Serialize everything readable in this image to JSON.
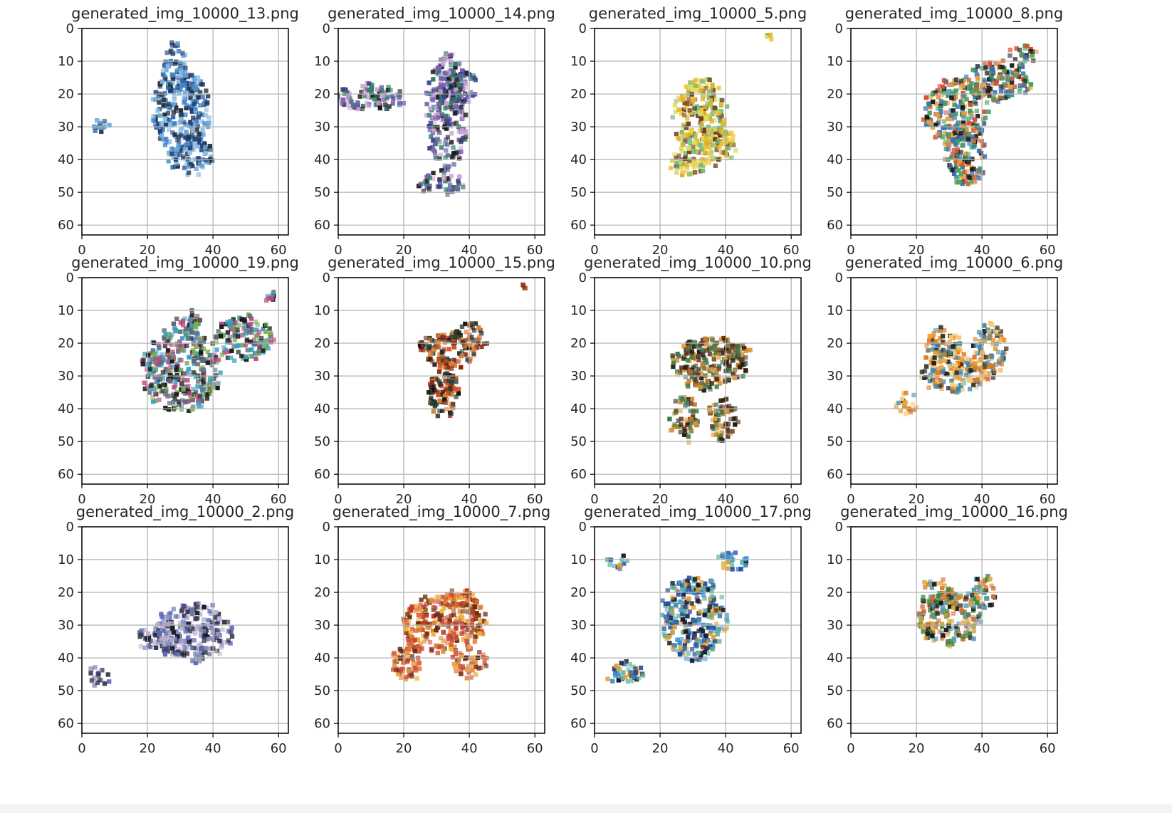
{
  "figure": {
    "background": "#ffffff",
    "grid_color": "#b0b0b0",
    "axis_color": "#000000",
    "text_color": "#262626"
  },
  "chart_data": [
    {
      "type": "heatmap",
      "title": "generated_img_10000_13.png",
      "xlim": [
        0,
        63
      ],
      "ylim": [
        63,
        0
      ],
      "xticks": [
        0,
        20,
        40,
        60
      ],
      "yticks": [
        0,
        10,
        20,
        30,
        40,
        50,
        60
      ],
      "grid": true,
      "palette": [
        "#3f7fc7",
        "#8fc0e6",
        "#1d3f7a",
        "#5aa0d8",
        "#233040"
      ],
      "blobs": [
        [
          30,
          25,
          9,
          12
        ],
        [
          28,
          12,
          4,
          8
        ],
        [
          33,
          38,
          7,
          6
        ],
        [
          6,
          29,
          3,
          2
        ]
      ]
    },
    {
      "type": "heatmap",
      "title": "generated_img_10000_14.png",
      "xlim": [
        0,
        63
      ],
      "ylim": [
        63,
        0
      ],
      "xticks": [
        0,
        20,
        40,
        60
      ],
      "yticks": [
        0,
        10,
        20,
        30,
        40,
        50,
        60
      ],
      "grid": true,
      "palette": [
        "#1a1a1a",
        "#3a3f8c",
        "#7b5fb0",
        "#2f7f6a",
        "#c9a0d0"
      ],
      "blobs": [
        [
          33,
          25,
          6,
          18
        ],
        [
          36,
          18,
          6,
          6
        ],
        [
          10,
          21,
          11,
          4
        ],
        [
          32,
          47,
          7,
          3
        ]
      ]
    },
    {
      "type": "heatmap",
      "title": "generated_img_10000_5.png",
      "xlim": [
        0,
        63
      ],
      "ylim": [
        63,
        0
      ],
      "xticks": [
        0,
        20,
        40,
        60
      ],
      "yticks": [
        0,
        10,
        20,
        30,
        40,
        50,
        60
      ],
      "grid": true,
      "palette": [
        "#f2c640",
        "#e0b020",
        "#6ac080",
        "#e0e060",
        "#6a3a20"
      ],
      "blobs": [
        [
          32,
          26,
          8,
          11
        ],
        [
          34,
          36,
          10,
          6
        ],
        [
          28,
          42,
          5,
          3
        ],
        [
          54,
          2,
          2,
          1
        ]
      ]
    },
    {
      "type": "heatmap",
      "title": "generated_img_10000_8.png",
      "xlim": [
        0,
        63
      ],
      "ylim": [
        63,
        0
      ],
      "xticks": [
        0,
        20,
        40,
        60
      ],
      "yticks": [
        0,
        10,
        20,
        30,
        40,
        50,
        60
      ],
      "grid": true,
      "palette": [
        "#1a1a1a",
        "#3a6fb0",
        "#d45030",
        "#3fa060",
        "#e6a040"
      ],
      "blobs": [
        [
          32,
          25,
          10,
          10
        ],
        [
          45,
          16,
          10,
          6
        ],
        [
          35,
          38,
          6,
          10
        ],
        [
          52,
          8,
          4,
          3
        ]
      ]
    },
    {
      "type": "heatmap",
      "title": "generated_img_10000_19.png",
      "xlim": [
        0,
        63
      ],
      "ylim": [
        63,
        0
      ],
      "xticks": [
        0,
        20,
        40,
        60
      ],
      "yticks": [
        0,
        10,
        20,
        30,
        40,
        50,
        60
      ],
      "grid": true,
      "palette": [
        "#1a1a1a",
        "#3aa0c0",
        "#7ab050",
        "#c04a80",
        "#5a6a80"
      ],
      "blobs": [
        [
          30,
          28,
          12,
          13
        ],
        [
          49,
          18,
          9,
          7
        ],
        [
          32,
          14,
          4,
          4
        ],
        [
          58,
          6,
          2,
          2
        ]
      ]
    },
    {
      "type": "heatmap",
      "title": "generated_img_10000_15.png",
      "xlim": [
        0,
        63
      ],
      "ylim": [
        63,
        0
      ],
      "xticks": [
        0,
        20,
        40,
        60
      ],
      "yticks": [
        0,
        10,
        20,
        30,
        40,
        50,
        60
      ],
      "grid": true,
      "palette": [
        "#101010",
        "#c85020",
        "#e08030",
        "#203a30",
        "#8a2a10"
      ],
      "blobs": [
        [
          33,
          22,
          9,
          5
        ],
        [
          32,
          33,
          5,
          10
        ],
        [
          40,
          18,
          5,
          4
        ],
        [
          56,
          2,
          2,
          1
        ]
      ]
    },
    {
      "type": "heatmap",
      "title": "generated_img_10000_10.png",
      "xlim": [
        0,
        63
      ],
      "ylim": [
        63,
        0
      ],
      "xticks": [
        0,
        20,
        40,
        60
      ],
      "yticks": [
        0,
        10,
        20,
        30,
        40,
        50,
        60
      ],
      "grid": true,
      "palette": [
        "#2a1a10",
        "#d07a20",
        "#3a7a50",
        "#e0a040",
        "#5a3a2a"
      ],
      "blobs": [
        [
          35,
          26,
          12,
          8
        ],
        [
          27,
          43,
          4,
          7
        ],
        [
          39,
          43,
          4,
          7
        ],
        [
          42,
          24,
          5,
          5
        ]
      ]
    },
    {
      "type": "heatmap",
      "title": "generated_img_10000_6.png",
      "xlim": [
        0,
        63
      ],
      "ylim": [
        63,
        0
      ],
      "xticks": [
        0,
        20,
        40,
        60
      ],
      "yticks": [
        0,
        10,
        20,
        30,
        40,
        50,
        60
      ],
      "grid": true,
      "palette": [
        "#e07a20",
        "#f0a030",
        "#1a1a1a",
        "#3a8ab0",
        "#f0d080"
      ],
      "blobs": [
        [
          31,
          28,
          10,
          7
        ],
        [
          42,
          22,
          5,
          9
        ],
        [
          28,
          20,
          5,
          5
        ],
        [
          17,
          38,
          3,
          3
        ]
      ]
    },
    {
      "type": "heatmap",
      "title": "generated_img_10000_2.png",
      "xlim": [
        0,
        63
      ],
      "ylim": [
        63,
        0
      ],
      "xticks": [
        0,
        20,
        40,
        60
      ],
      "yticks": [
        0,
        10,
        20,
        30,
        40,
        50,
        60
      ],
      "grid": true,
      "palette": [
        "#1a1a2a",
        "#5a6ab0",
        "#c0b0d0",
        "#3a3a5a",
        "#8a90c0"
      ],
      "blobs": [
        [
          34,
          32,
          12,
          9
        ],
        [
          22,
          34,
          6,
          3
        ],
        [
          5,
          45,
          3,
          3
        ]
      ]
    },
    {
      "type": "heatmap",
      "title": "generated_img_10000_7.png",
      "xlim": [
        0,
        63
      ],
      "ylim": [
        63,
        0
      ],
      "xticks": [
        0,
        20,
        40,
        60
      ],
      "yticks": [
        0,
        10,
        20,
        30,
        40,
        50,
        60
      ],
      "grid": true,
      "palette": [
        "#c03a20",
        "#e08030",
        "#f0b040",
        "#6a2a10",
        "#d05040"
      ],
      "blobs": [
        [
          32,
          29,
          13,
          9
        ],
        [
          21,
          40,
          5,
          7
        ],
        [
          40,
          41,
          5,
          5
        ],
        [
          38,
          22,
          6,
          3
        ]
      ]
    },
    {
      "type": "heatmap",
      "title": "generated_img_10000_17.png",
      "xlim": [
        0,
        63
      ],
      "ylim": [
        63,
        0
      ],
      "xticks": [
        0,
        20,
        40,
        60
      ],
      "yticks": [
        0,
        10,
        20,
        30,
        40,
        50,
        60
      ],
      "grid": true,
      "palette": [
        "#2a4a9a",
        "#3a90d0",
        "#e0a030",
        "#1a1a2a",
        "#5ab0a0"
      ],
      "blobs": [
        [
          30,
          28,
          10,
          13
        ],
        [
          42,
          10,
          4,
          3
        ],
        [
          7,
          11,
          3,
          2
        ],
        [
          9,
          44,
          6,
          3
        ]
      ]
    },
    {
      "type": "heatmap",
      "title": "generated_img_10000_16.png",
      "xlim": [
        0,
        63
      ],
      "ylim": [
        63,
        0
      ],
      "xticks": [
        0,
        20,
        40,
        60
      ],
      "yticks": [
        0,
        10,
        20,
        30,
        40,
        50,
        60
      ],
      "grid": true,
      "palette": [
        "#e0a030",
        "#3a8a40",
        "#1a1a1a",
        "#5a9ab0",
        "#d07030"
      ],
      "blobs": [
        [
          30,
          28,
          10,
          8
        ],
        [
          40,
          20,
          4,
          5
        ],
        [
          26,
          20,
          5,
          4
        ]
      ]
    }
  ]
}
